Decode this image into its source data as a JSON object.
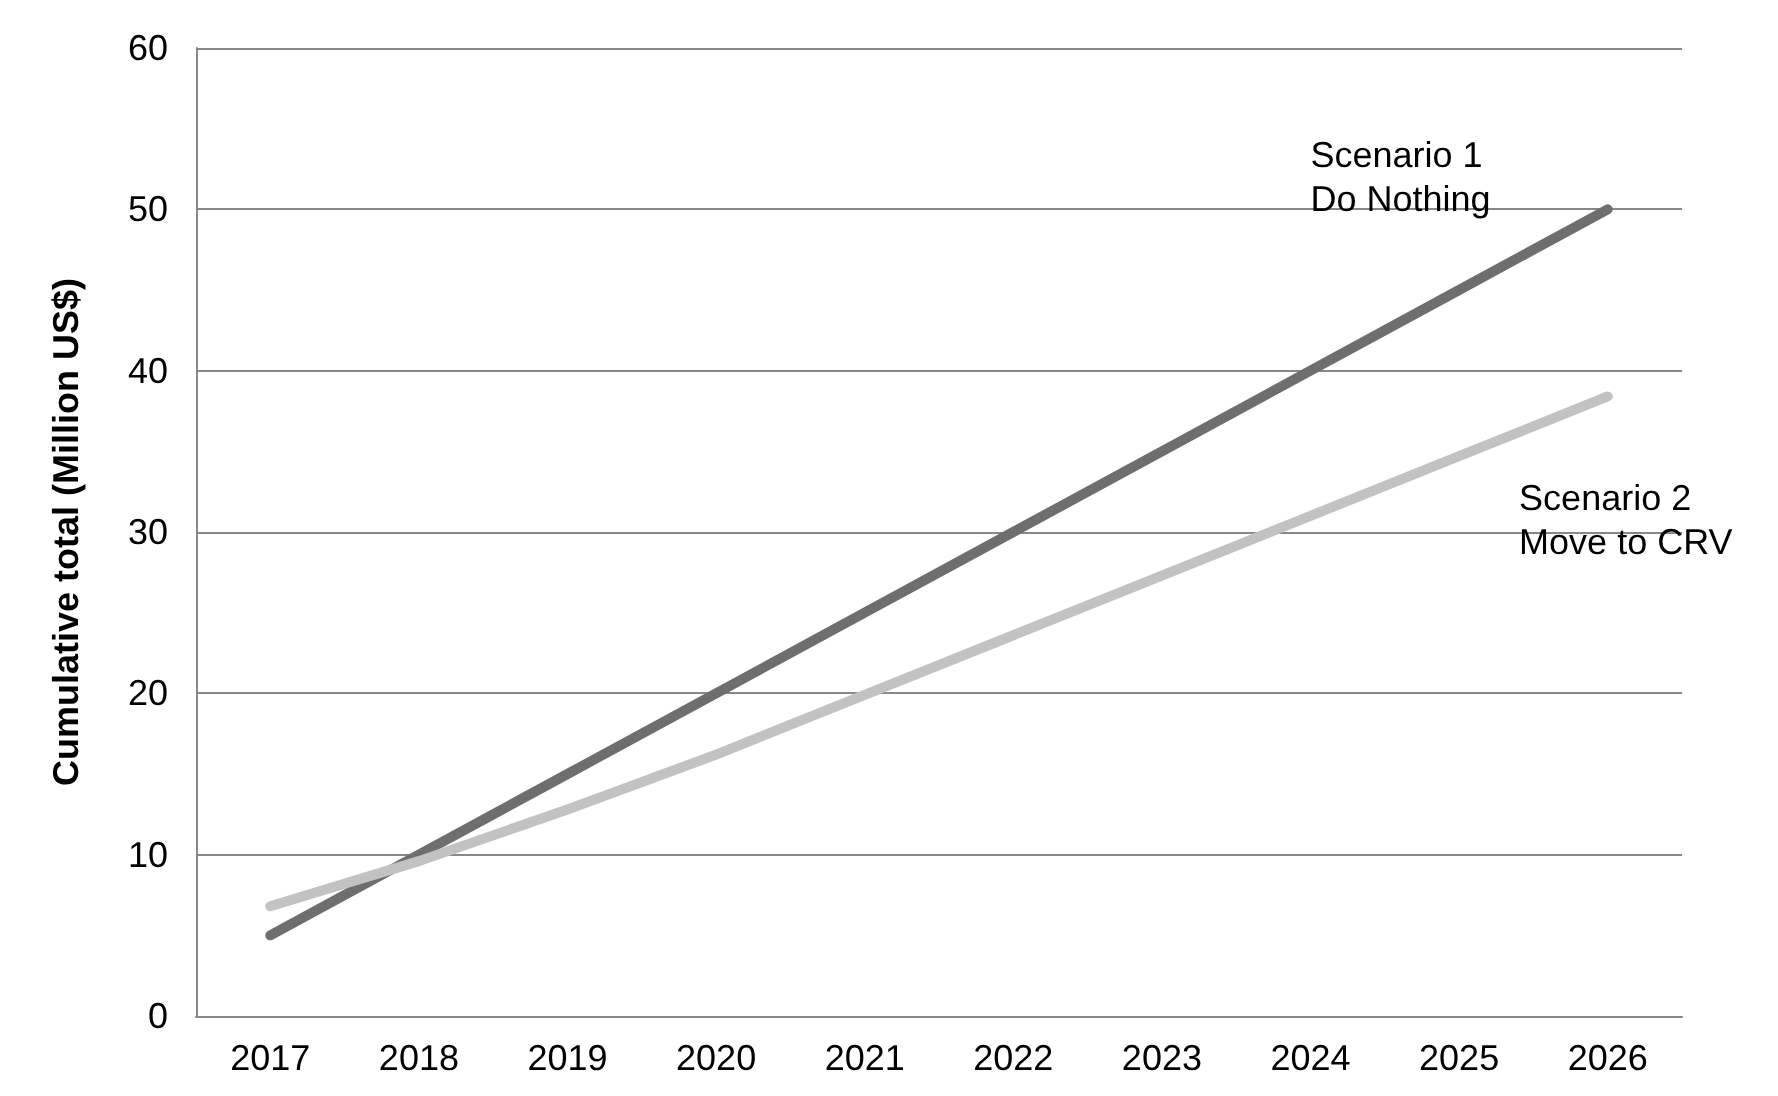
{
  "chart_data": {
    "type": "line",
    "ylabel": "Cumulative total (Million US$)",
    "categories": [
      "2017",
      "2018",
      "2019",
      "2020",
      "2021",
      "2022",
      "2023",
      "2024",
      "2025",
      "2026"
    ],
    "series": [
      {
        "name": "Scenario 1\nDo Nothing",
        "color": "#6e6e6e",
        "values": [
          5,
          10,
          15,
          20,
          25,
          30,
          35,
          40,
          45,
          50
        ]
      },
      {
        "name": "Scenario 2\nMove to CRV",
        "color": "#c2c2c2",
        "values": [
          6.8,
          9.6,
          12.8,
          16.2,
          19.9,
          23.6,
          27.3,
          31.0,
          34.7,
          38.4
        ]
      }
    ],
    "ylim": [
      0,
      60
    ],
    "yticks": [
      0,
      10,
      20,
      30,
      40,
      50,
      60
    ],
    "grid": "y",
    "legend": false,
    "marker": "none",
    "line_style": "solid"
  }
}
